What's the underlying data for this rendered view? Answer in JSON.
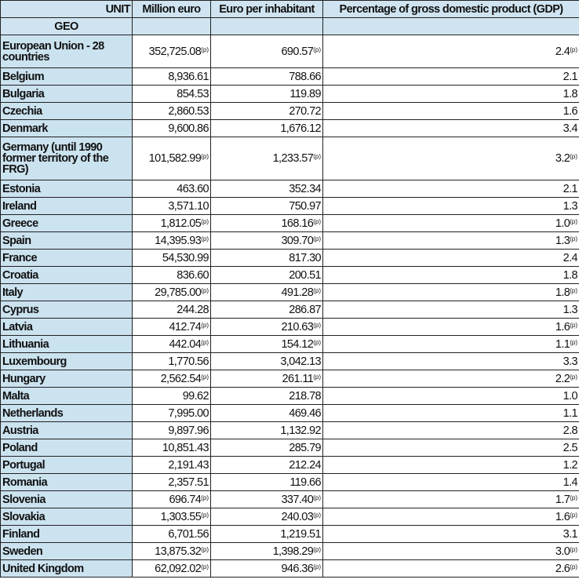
{
  "header": {
    "unit_label": "UNIT",
    "geo_label": "GEO",
    "columns": [
      "Million euro",
      "Euro per inhabitant",
      "Percentage of gross domestic product (GDP)"
    ]
  },
  "flag_label": "(p)",
  "colors": {
    "header_bg": "#cfe4f0",
    "geo_bg": "#cbe2ef",
    "border": "#222222"
  },
  "rows": [
    {
      "geo": "European Union - 28 countries",
      "million_euro": "352,725.08",
      "million_euro_flag": "(p)",
      "euro_per_inhabitant": "690.57",
      "euro_per_inhabitant_flag": "(p)",
      "pct_gdp": "2.4",
      "pct_gdp_flag": "(p)"
    },
    {
      "geo": "Belgium",
      "million_euro": "8,936.61",
      "euro_per_inhabitant": "788.66",
      "pct_gdp": "2.1"
    },
    {
      "geo": "Bulgaria",
      "million_euro": "854.53",
      "euro_per_inhabitant": "119.89",
      "pct_gdp": "1.8"
    },
    {
      "geo": "Czechia",
      "million_euro": "2,860.53",
      "euro_per_inhabitant": "270.72",
      "pct_gdp": "1.6"
    },
    {
      "geo": "Denmark",
      "million_euro": "9,600.86",
      "euro_per_inhabitant": "1,676.12",
      "pct_gdp": "3.4"
    },
    {
      "geo": "Germany (until 1990 former territory of the FRG)",
      "million_euro": "101,582.99",
      "million_euro_flag": "(p)",
      "euro_per_inhabitant": "1,233.57",
      "euro_per_inhabitant_flag": "(p)",
      "pct_gdp": "3.2",
      "pct_gdp_flag": "(p)"
    },
    {
      "geo": "Estonia",
      "million_euro": "463.60",
      "euro_per_inhabitant": "352.34",
      "pct_gdp": "2.1"
    },
    {
      "geo": "Ireland",
      "million_euro": "3,571.10",
      "euro_per_inhabitant": "750.97",
      "pct_gdp": "1.3"
    },
    {
      "geo": "Greece",
      "million_euro": "1,812.05",
      "million_euro_flag": "(p)",
      "euro_per_inhabitant": "168.16",
      "euro_per_inhabitant_flag": "(p)",
      "pct_gdp": "1.0",
      "pct_gdp_flag": "(p)"
    },
    {
      "geo": "Spain",
      "million_euro": "14,395.93",
      "million_euro_flag": "(p)",
      "euro_per_inhabitant": "309.70",
      "euro_per_inhabitant_flag": "(p)",
      "pct_gdp": "1.3",
      "pct_gdp_flag": "(p)"
    },
    {
      "geo": "France",
      "million_euro": "54,530.99",
      "euro_per_inhabitant": "817.30",
      "pct_gdp": "2.4"
    },
    {
      "geo": "Croatia",
      "million_euro": "836.60",
      "euro_per_inhabitant": "200.51",
      "pct_gdp": "1.8"
    },
    {
      "geo": "Italy",
      "million_euro": "29,785.00",
      "million_euro_flag": "(p)",
      "euro_per_inhabitant": "491.28",
      "euro_per_inhabitant_flag": "(p)",
      "pct_gdp": "1.8",
      "pct_gdp_flag": "(p)"
    },
    {
      "geo": "Cyprus",
      "million_euro": "244.28",
      "euro_per_inhabitant": "286.87",
      "pct_gdp": "1.3"
    },
    {
      "geo": "Latvia",
      "million_euro": "412.74",
      "million_euro_flag": "(p)",
      "euro_per_inhabitant": "210.63",
      "euro_per_inhabitant_flag": "(p)",
      "pct_gdp": "1.6",
      "pct_gdp_flag": "(p)"
    },
    {
      "geo": "Lithuania",
      "million_euro": "442.04",
      "million_euro_flag": "(p)",
      "euro_per_inhabitant": "154.12",
      "euro_per_inhabitant_flag": "(p)",
      "pct_gdp": "1.1",
      "pct_gdp_flag": "(p)"
    },
    {
      "geo": "Luxembourg",
      "million_euro": "1,770.56",
      "euro_per_inhabitant": "3,042.13",
      "pct_gdp": "3.3"
    },
    {
      "geo": "Hungary",
      "million_euro": "2,562.54",
      "million_euro_flag": "(p)",
      "euro_per_inhabitant": "261.11",
      "euro_per_inhabitant_flag": "(p)",
      "pct_gdp": "2.2",
      "pct_gdp_flag": "(p)"
    },
    {
      "geo": "Malta",
      "million_euro": "99.62",
      "euro_per_inhabitant": "218.78",
      "pct_gdp": "1.0"
    },
    {
      "geo": "Netherlands",
      "million_euro": "7,995.00",
      "euro_per_inhabitant": "469.46",
      "pct_gdp": "1.1"
    },
    {
      "geo": "Austria",
      "million_euro": "9,897.96",
      "euro_per_inhabitant": "1,132.92",
      "pct_gdp": "2.8"
    },
    {
      "geo": "Poland",
      "million_euro": "10,851.43",
      "euro_per_inhabitant": "285.79",
      "pct_gdp": "2.5"
    },
    {
      "geo": "Portugal",
      "million_euro": "2,191.43",
      "euro_per_inhabitant": "212.24",
      "pct_gdp": "1.2"
    },
    {
      "geo": "Romania",
      "million_euro": "2,357.51",
      "euro_per_inhabitant": "119.66",
      "pct_gdp": "1.4"
    },
    {
      "geo": "Slovenia",
      "million_euro": "696.74",
      "million_euro_flag": "(p)",
      "euro_per_inhabitant": "337.40",
      "euro_per_inhabitant_flag": "(p)",
      "pct_gdp": "1.7",
      "pct_gdp_flag": "(p)"
    },
    {
      "geo": "Slovakia",
      "million_euro": "1,303.55",
      "million_euro_flag": "(p)",
      "euro_per_inhabitant": "240.03",
      "euro_per_inhabitant_flag": "(p)",
      "pct_gdp": "1.6",
      "pct_gdp_flag": "(p)"
    },
    {
      "geo": "Finland",
      "million_euro": "6,701.56",
      "euro_per_inhabitant": "1,219.51",
      "pct_gdp": "3.1"
    },
    {
      "geo": "Sweden",
      "million_euro": "13,875.32",
      "million_euro_flag": "(p)",
      "euro_per_inhabitant": "1,398.29",
      "euro_per_inhabitant_flag": "(p)",
      "pct_gdp": "3.0",
      "pct_gdp_flag": "(p)"
    },
    {
      "geo": "United Kingdom",
      "million_euro": "62,092.02",
      "million_euro_flag": "(p)",
      "euro_per_inhabitant": "946.36",
      "euro_per_inhabitant_flag": "(p)",
      "pct_gdp": "2.6",
      "pct_gdp_flag": "(p)"
    }
  ]
}
